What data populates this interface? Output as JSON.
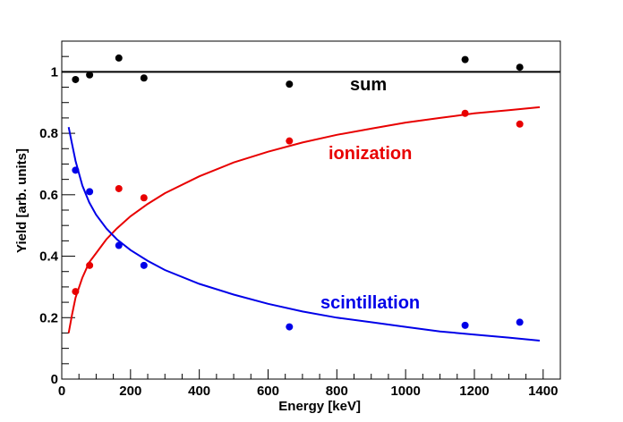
{
  "chart_data": {
    "type": "scatter",
    "xlabel": "Energy [keV]",
    "ylabel": "Yield [arb. units]",
    "xlim": [
      0,
      1450
    ],
    "ylim": [
      0,
      1.1
    ],
    "x_ticks": [
      0,
      200,
      400,
      600,
      800,
      1000,
      1200,
      1400
    ],
    "y_ticks": [
      0,
      0.2,
      0.4,
      0.6,
      0.8,
      1
    ],
    "x_tick_labels": [
      "0",
      "200",
      "400",
      "600",
      "800",
      "1000",
      "1200",
      "1400"
    ],
    "y_tick_labels": [
      "0",
      "0.2",
      "0.4",
      "0.6",
      "0.8",
      "1"
    ],
    "grid": false,
    "series": [
      {
        "name": "sum",
        "color": "#000000",
        "points": [
          [
            40,
            0.975
          ],
          [
            81,
            0.99
          ],
          [
            166,
            1.045
          ],
          [
            239,
            0.98
          ],
          [
            662,
            0.96
          ],
          [
            1173,
            1.04
          ],
          [
            1332,
            1.015
          ]
        ],
        "fit": [
          [
            0,
            1.0
          ],
          [
            1450,
            1.0
          ]
        ]
      },
      {
        "name": "ionization",
        "color": "#e80000",
        "points": [
          [
            40,
            0.285
          ],
          [
            81,
            0.37
          ],
          [
            166,
            0.62
          ],
          [
            239,
            0.59
          ],
          [
            662,
            0.775
          ],
          [
            1173,
            0.865
          ],
          [
            1332,
            0.83
          ]
        ],
        "fit": [
          [
            20,
            0.15
          ],
          [
            30,
            0.21
          ],
          [
            40,
            0.265
          ],
          [
            60,
            0.33
          ],
          [
            80,
            0.38
          ],
          [
            100,
            0.41
          ],
          [
            130,
            0.455
          ],
          [
            160,
            0.49
          ],
          [
            200,
            0.53
          ],
          [
            250,
            0.57
          ],
          [
            300,
            0.605
          ],
          [
            400,
            0.66
          ],
          [
            500,
            0.705
          ],
          [
            600,
            0.74
          ],
          [
            700,
            0.77
          ],
          [
            800,
            0.795
          ],
          [
            900,
            0.815
          ],
          [
            1000,
            0.835
          ],
          [
            1100,
            0.85
          ],
          [
            1200,
            0.865
          ],
          [
            1300,
            0.875
          ],
          [
            1390,
            0.885
          ]
        ]
      },
      {
        "name": "scintillation",
        "color": "#0000e8",
        "points": [
          [
            40,
            0.68
          ],
          [
            81,
            0.61
          ],
          [
            166,
            0.435
          ],
          [
            239,
            0.37
          ],
          [
            662,
            0.17
          ],
          [
            1173,
            0.175
          ],
          [
            1332,
            0.185
          ]
        ],
        "fit": [
          [
            20,
            0.82
          ],
          [
            30,
            0.765
          ],
          [
            40,
            0.71
          ],
          [
            60,
            0.63
          ],
          [
            80,
            0.575
          ],
          [
            100,
            0.535
          ],
          [
            130,
            0.49
          ],
          [
            160,
            0.455
          ],
          [
            200,
            0.42
          ],
          [
            250,
            0.385
          ],
          [
            300,
            0.355
          ],
          [
            400,
            0.31
          ],
          [
            500,
            0.275
          ],
          [
            600,
            0.245
          ],
          [
            700,
            0.22
          ],
          [
            800,
            0.2
          ],
          [
            900,
            0.185
          ],
          [
            1000,
            0.17
          ],
          [
            1100,
            0.155
          ],
          [
            1200,
            0.145
          ],
          [
            1300,
            0.135
          ],
          [
            1390,
            0.125
          ]
        ]
      }
    ]
  }
}
